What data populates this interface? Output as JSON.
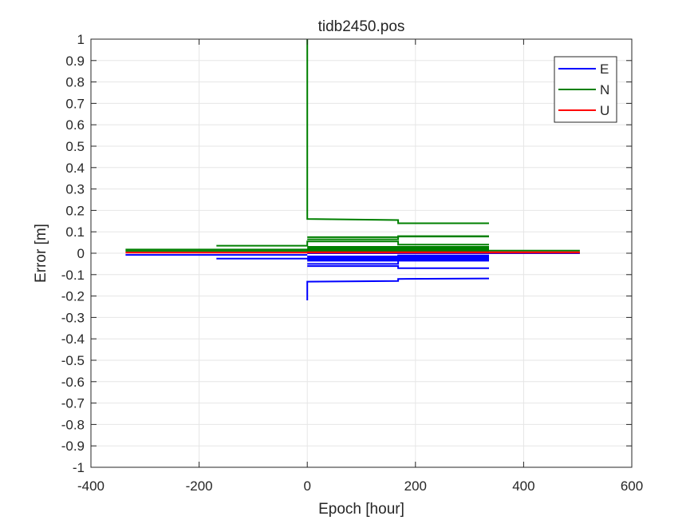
{
  "chart_data": {
    "type": "line",
    "title": "tidb2450.pos",
    "xlabel": "Epoch [hour]",
    "ylabel": "Error [m]",
    "xlim": [
      -400,
      600
    ],
    "ylim": [
      -1,
      1
    ],
    "xticks": [
      -400,
      -200,
      0,
      200,
      400,
      600
    ],
    "xtick_labels": [
      "-400",
      "-200",
      "0",
      "200",
      "400",
      "600"
    ],
    "yticks": [
      1,
      0.9,
      0.8,
      0.7,
      0.6,
      0.5,
      0.4,
      0.3,
      0.2,
      0.1,
      0,
      -0.1,
      -0.2,
      -0.3,
      -0.4,
      -0.5,
      -0.6,
      -0.7,
      -0.8,
      -0.9,
      -1
    ],
    "ytick_labels": [
      "1",
      "0.9",
      "0.8",
      "0.7",
      "0.6",
      "0.5",
      "0.4",
      "0.3",
      "0.2",
      "0.1",
      "0",
      "-0.1",
      "-0.2",
      "-0.3",
      "-0.4",
      "-0.5",
      "-0.6",
      "-0.7",
      "-0.8",
      "-0.9",
      "-1"
    ],
    "grid": true,
    "legend_position": "top-right",
    "series": [
      {
        "name": "E",
        "color": "#0000ff",
        "segments": [
          [
            [
              -336,
              -0.008
            ],
            [
              0,
              -0.008
            ]
          ],
          [
            [
              -168,
              -0.025
            ],
            [
              168,
              -0.025
            ],
            [
              168,
              -0.01
            ],
            [
              336,
              -0.01
            ]
          ],
          [
            [
              0,
              -0.015
            ],
            [
              336,
              -0.015
            ]
          ],
          [
            [
              0,
              -0.02
            ],
            [
              336,
              -0.02
            ]
          ],
          [
            [
              0,
              -0.025
            ],
            [
              336,
              -0.025
            ]
          ],
          [
            [
              0,
              -0.03
            ],
            [
              336,
              -0.03
            ]
          ],
          [
            [
              0,
              -0.035
            ],
            [
              336,
              -0.035
            ]
          ],
          [
            [
              0,
              -0.05
            ],
            [
              168,
              -0.05
            ],
            [
              168,
              -0.03
            ],
            [
              336,
              -0.03
            ]
          ],
          [
            [
              0,
              -0.06
            ],
            [
              168,
              -0.06
            ],
            [
              168,
              -0.07
            ],
            [
              336,
              -0.07
            ]
          ],
          [
            [
              0,
              -0.22
            ],
            [
              0,
              -0.133
            ],
            [
              168,
              -0.13
            ],
            [
              168,
              -0.12
            ],
            [
              336,
              -0.118
            ]
          ],
          [
            [
              0,
              0.0
            ],
            [
              504,
              0.0
            ]
          ]
        ]
      },
      {
        "name": "N",
        "color": "#008000",
        "segments": [
          [
            [
              0,
              1.0
            ],
            [
              0,
              0.16
            ],
            [
              168,
              0.155
            ],
            [
              168,
              0.14
            ],
            [
              336,
              0.14
            ]
          ],
          [
            [
              0,
              0.065
            ],
            [
              168,
              0.065
            ],
            [
              168,
              0.08
            ],
            [
              336,
              0.08
            ]
          ],
          [
            [
              0,
              0.075
            ],
            [
              168,
              0.075
            ],
            [
              168,
              0.078
            ],
            [
              336,
              0.078
            ]
          ],
          [
            [
              -168,
              0.035
            ],
            [
              0,
              0.035
            ],
            [
              0,
              0.055
            ],
            [
              168,
              0.055
            ],
            [
              168,
              0.04
            ],
            [
              336,
              0.04
            ]
          ],
          [
            [
              0,
              0.03
            ],
            [
              336,
              0.03
            ]
          ],
          [
            [
              0,
              0.025
            ],
            [
              336,
              0.025
            ]
          ],
          [
            [
              0,
              0.02
            ],
            [
              336,
              0.02
            ]
          ],
          [
            [
              -336,
              0.017
            ],
            [
              0,
              0.017
            ],
            [
              0,
              0.015
            ],
            [
              336,
              0.015
            ]
          ],
          [
            [
              -336,
              0.01
            ],
            [
              336,
              0.01
            ]
          ],
          [
            [
              336,
              0.012
            ],
            [
              504,
              0.012
            ]
          ]
        ]
      },
      {
        "name": "U",
        "color": "#ff0000",
        "segments": [
          [
            [
              -336,
              0.003
            ],
            [
              504,
              0.003
            ]
          ],
          [
            [
              0,
              0.005
            ],
            [
              504,
              0.005
            ]
          ]
        ]
      }
    ]
  }
}
